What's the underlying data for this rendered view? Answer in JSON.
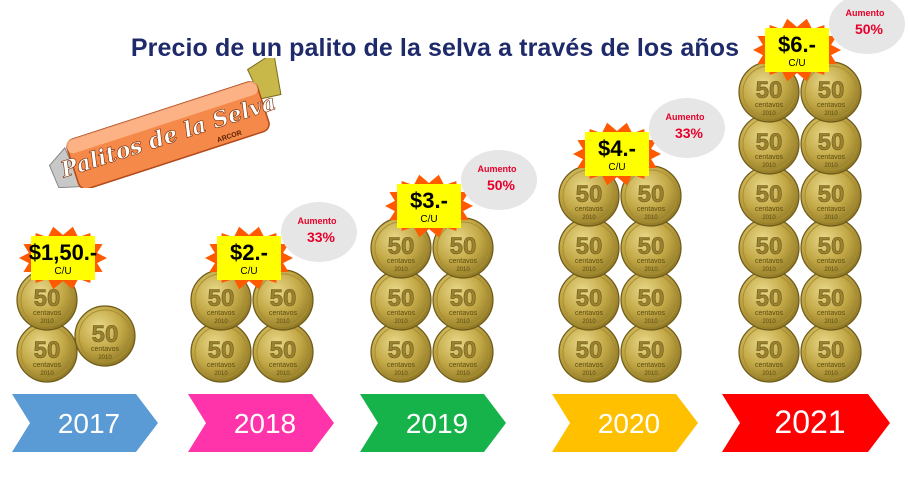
{
  "title": "Precio de un palito de la selva a través de los años",
  "candy": {
    "brand": "Palitos de la Selva",
    "maker": "ARCOR"
  },
  "coin": {
    "value": "50",
    "word": "centavos",
    "year": "2010"
  },
  "increase_label": "Aumento",
  "unit_label": "C/U",
  "chart_data": {
    "type": "bar",
    "title": "Precio de un palito de la selva a través de los años",
    "categories": [
      "2017",
      "2018",
      "2019",
      "2020",
      "2021"
    ],
    "values": [
      1.5,
      2,
      3,
      4,
      6
    ],
    "coins_per_year": [
      3,
      4,
      6,
      8,
      12
    ],
    "price_labels": [
      "$1,50.-",
      "$2.-",
      "$3.-",
      "$4.-",
      "$6.-"
    ],
    "increase_pct": [
      "",
      "33%",
      "50%",
      "33%",
      "50%"
    ],
    "arrow_colors": [
      "#5b9bd5",
      "#ff33aa",
      "#16b24a",
      "#ffc000",
      "#ff0000"
    ],
    "text_colors": [
      "#ffffff",
      "#ffffff",
      "#ffffff",
      "#ffffff",
      "#ffffff"
    ]
  }
}
